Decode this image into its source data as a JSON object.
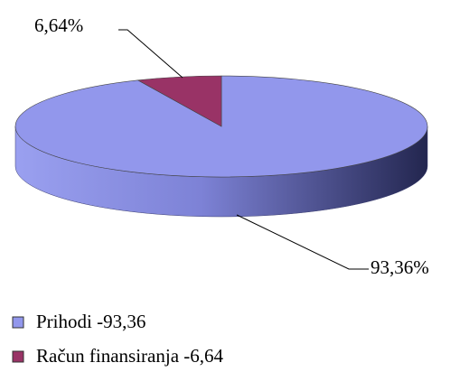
{
  "chart_data": {
    "type": "pie",
    "categories": [
      "Prihodi -93,36",
      "Račun finansiranja -6,64"
    ],
    "values": [
      93.36,
      6.64
    ],
    "value_labels": [
      "93,36%",
      "6,64%"
    ],
    "colors": [
      "#9297ec",
      "#993366"
    ]
  }
}
